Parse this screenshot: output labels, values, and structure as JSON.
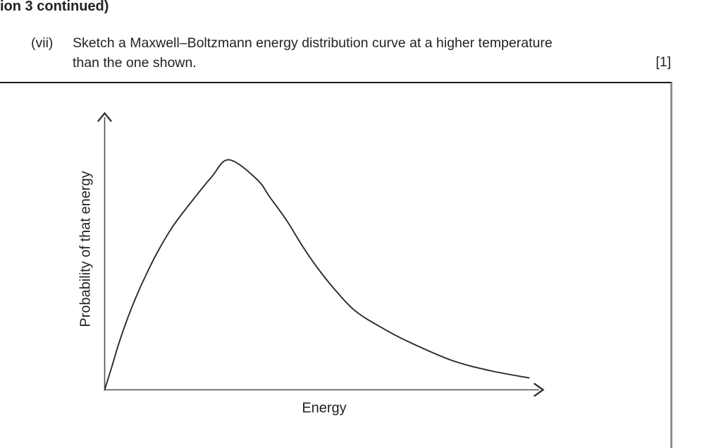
{
  "page": {
    "header_fragment": "ion 3 continued)",
    "question": {
      "number": "(vii)",
      "line1": "Sketch a Maxwell–Boltzmann energy distribution curve at a higher temperature",
      "line2": "than the one shown.",
      "marks": "[1]"
    }
  },
  "colors": {
    "background": "#ffffff",
    "text": "#232323",
    "box-top": "#1a1a1a",
    "box-right": "#8e8e8e",
    "axis": "#4f4f4f",
    "axis-arrow": "#333333",
    "curve": "#2b2b2b"
  },
  "chart_data": {
    "type": "line",
    "title": "",
    "xlabel": "Energy",
    "ylabel": "Probability of that energy",
    "x_axis": {
      "label": "Energy",
      "tick_labels": [],
      "arrow": true
    },
    "y_axis": {
      "label": "Probability of that energy",
      "tick_labels": [],
      "arrow": true
    },
    "grid": false,
    "legend": false,
    "series": [
      {
        "name": "Maxwell–Boltzmann energy distribution (temperature shown)",
        "points_fraction_of_axes": [
          [
            0.0,
            0.0
          ],
          [
            0.016,
            0.082
          ],
          [
            0.032,
            0.166
          ],
          [
            0.051,
            0.253
          ],
          [
            0.072,
            0.337
          ],
          [
            0.096,
            0.421
          ],
          [
            0.124,
            0.508
          ],
          [
            0.156,
            0.592
          ],
          [
            0.196,
            0.676
          ],
          [
            0.244,
            0.77
          ],
          [
            0.283,
            0.832
          ],
          [
            0.346,
            0.763
          ],
          [
            0.378,
            0.694
          ],
          [
            0.416,
            0.61
          ],
          [
            0.453,
            0.515
          ],
          [
            0.49,
            0.431
          ],
          [
            0.529,
            0.355
          ],
          [
            0.571,
            0.286
          ],
          [
            0.626,
            0.23
          ],
          [
            0.69,
            0.176
          ],
          [
            0.791,
            0.107
          ],
          [
            0.88,
            0.069
          ],
          [
            0.968,
            0.043
          ]
        ]
      }
    ],
    "peak": {
      "x_fraction": 0.283,
      "y_fraction": 0.832
    }
  }
}
